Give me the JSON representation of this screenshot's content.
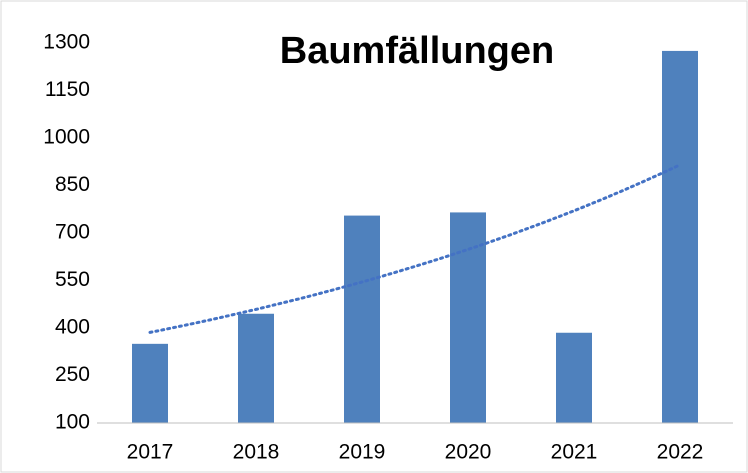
{
  "chart_data": {
    "type": "bar",
    "title": "Baumfällungen",
    "categories": [
      "2017",
      "2018",
      "2019",
      "2020",
      "2021",
      "2022"
    ],
    "values": [
      350,
      445,
      755,
      765,
      385,
      1275
    ],
    "color": "#4f81bd",
    "ylim": [
      100,
      1300
    ],
    "yticks": [
      100,
      250,
      400,
      550,
      700,
      850,
      1000,
      1150,
      1300
    ],
    "grid": false,
    "trendline": {
      "type": "exponential",
      "color": "#4472c4"
    }
  }
}
